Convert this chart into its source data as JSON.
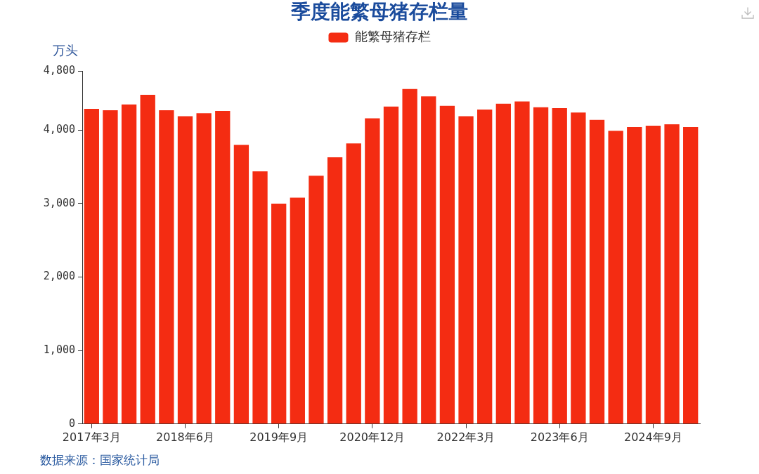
{
  "chart_data": {
    "type": "bar",
    "title": "季度能繁母猪存栏量",
    "ylabel": "万头",
    "categories": [
      "2017年3月",
      null,
      null,
      null,
      null,
      "2018年6月",
      null,
      null,
      null,
      null,
      "2019年9月",
      null,
      null,
      null,
      null,
      "2020年12月",
      null,
      null,
      null,
      null,
      "2022年3月",
      null,
      null,
      null,
      null,
      "2023年6月",
      null,
      null,
      null,
      null,
      "2024年9月",
      null,
      null
    ],
    "series": [
      {
        "name": "能繁母猪存栏",
        "color": "#f42c12",
        "values": [
          4290,
          4270,
          4350,
          4480,
          4270,
          4190,
          4230,
          4260,
          3800,
          3440,
          3000,
          3080,
          3380,
          3630,
          3820,
          4160,
          4320,
          4560,
          4460,
          4330,
          4190,
          4280,
          4360,
          4390,
          4310,
          4300,
          4240,
          4140,
          3990,
          4040,
          4060,
          4080,
          4040
        ]
      }
    ],
    "ylim": [
      0,
      4800
    ],
    "yticks": [
      0,
      {
        "value": 1000,
        "label": "1,000"
      },
      {
        "value": 2000,
        "label": "2,000"
      },
      {
        "value": 3000,
        "label": "3,000"
      },
      {
        "value": 4000,
        "label": "4,000"
      },
      {
        "value": 4800,
        "label": "4,800"
      }
    ],
    "legend": "top",
    "annotations": [
      "数据来源：国家统计局"
    ]
  }
}
